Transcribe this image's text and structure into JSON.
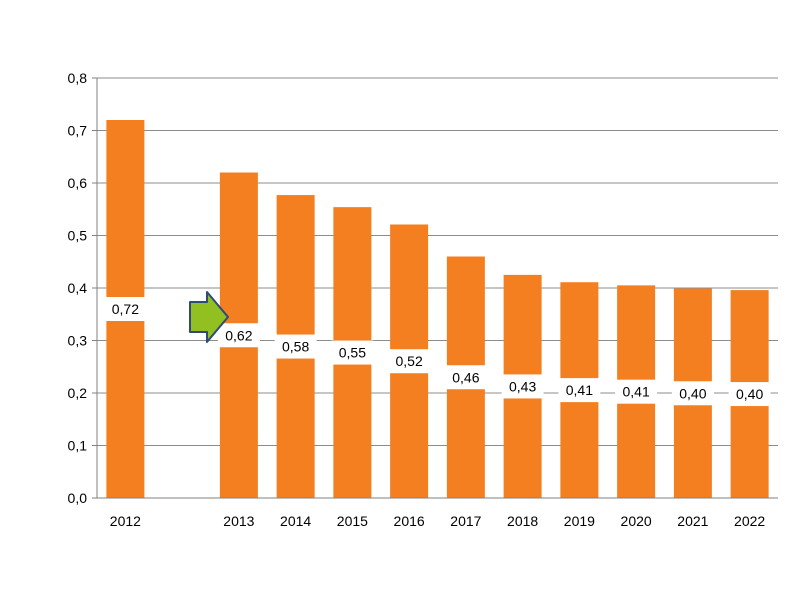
{
  "chart_data": {
    "type": "bar",
    "categories": [
      "2012",
      "",
      "2013",
      "2014",
      "2015",
      "2016",
      "2017",
      "2018",
      "2019",
      "2020",
      "2021",
      "2022"
    ],
    "values": [
      0.72,
      null,
      0.62,
      0.577,
      0.554,
      0.521,
      0.46,
      0.425,
      0.411,
      0.405,
      0.399,
      0.396
    ],
    "data_labels": [
      "0,72",
      "",
      "0,62",
      "0,58",
      "0,55",
      "0,52",
      "0,46",
      "0,43",
      "0,41",
      "0,41",
      "0,40",
      "0,40"
    ],
    "y_ticks": [
      "0,0",
      "0,1",
      "0,2",
      "0,3",
      "0,4",
      "0,5",
      "0,6",
      "0,7",
      "0,8"
    ],
    "ylim": [
      0,
      0.8
    ],
    "grid": true,
    "bar_color": "#f47f20",
    "arrow_fill": "#92c020",
    "arrow_stroke": "#2f4a7a",
    "title": "",
    "xlabel": "",
    "ylabel": ""
  }
}
